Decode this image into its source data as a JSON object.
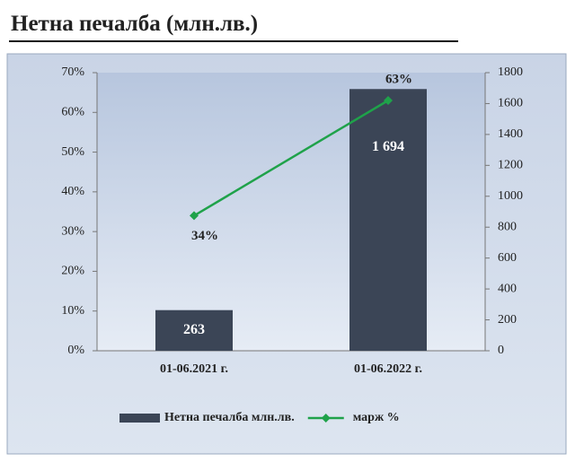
{
  "chart_data": {
    "type": "bar",
    "title": "Нетна печалба (млн.лв.)",
    "categories": [
      "01-06.2021 г.",
      "01-06.2022 г."
    ],
    "series": [
      {
        "name": "Нетна печалба млн.лв.",
        "type": "bar",
        "axis": "y2",
        "color": "#3b4556",
        "values": [
          263,
          1694
        ],
        "value_labels": [
          "263",
          "1 694"
        ]
      },
      {
        "name": "марж %",
        "type": "line",
        "color": "#1fa24a",
        "values": [
          34,
          63
        ],
        "value_labels": [
          "34%",
          "63%"
        ]
      }
    ],
    "ylim": [
      0,
      70
    ],
    "yticks": [
      {
        "value": 0,
        "label": "0%"
      },
      {
        "value": 10,
        "label": "10%"
      },
      {
        "value": 20,
        "label": "20%"
      },
      {
        "value": 30,
        "label": "30%"
      },
      {
        "value": 40,
        "label": "40%"
      },
      {
        "value": 50,
        "label": "50%"
      },
      {
        "value": 60,
        "label": "60%"
      },
      {
        "value": 70,
        "label": "70%"
      }
    ],
    "y2lim": [
      0,
      1800
    ],
    "y2ticks": [
      0,
      200,
      400,
      600,
      800,
      1000,
      1200,
      1400,
      1600,
      1800
    ],
    "grid": false,
    "legend": "bottom"
  }
}
